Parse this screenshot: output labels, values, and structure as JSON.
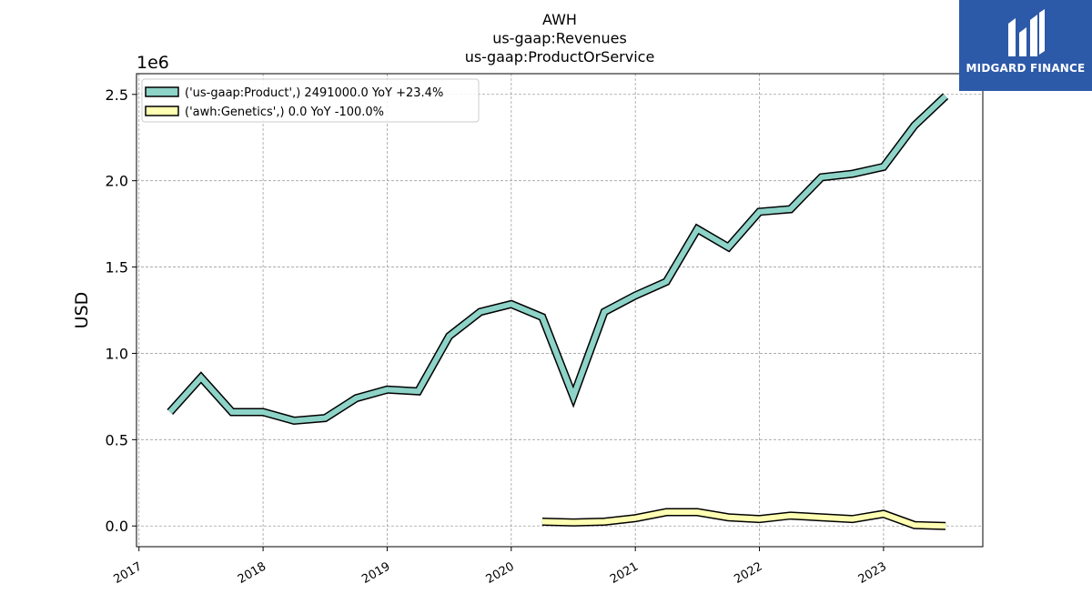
{
  "brand": {
    "name": "MIDGARD FINANCE",
    "bg": "#2d5aa8"
  },
  "chart_data": {
    "type": "line",
    "title_lines": [
      "AWH",
      "us-gaap:Revenues",
      "us-gaap:ProductOrService"
    ],
    "ylabel": "USD",
    "y_offset_label": "1e6",
    "ylim": [
      -0.12,
      2.62
    ],
    "y_ticks": [
      0.0,
      0.5,
      1.0,
      1.5,
      2.0,
      2.5
    ],
    "y_tick_labels": [
      "0.0",
      "0.5",
      "1.0",
      "1.5",
      "2.0",
      "2.5"
    ],
    "x_tick_labels": [
      "2017",
      "2018",
      "2019",
      "2020",
      "2021",
      "2022",
      "2023"
    ],
    "grid": true,
    "legend_position": "upper-left",
    "series": [
      {
        "name": "('us-gaap:Product',) 2491000.0 YoY +23.4%",
        "color": "#8dd3c7",
        "x": [
          2017.25,
          2017.5,
          2017.75,
          2018.0,
          2018.25,
          2018.5,
          2018.75,
          2019.0,
          2019.25,
          2019.5,
          2019.75,
          2020.0,
          2020.25,
          2020.5,
          2020.75,
          2021.0,
          2021.25,
          2021.5,
          2021.75,
          2022.0,
          2022.25,
          2022.5,
          2022.75,
          2023.0,
          2023.25,
          2023.5
        ],
        "values": [
          0.66,
          0.86,
          0.66,
          0.66,
          0.61,
          0.625,
          0.74,
          0.79,
          0.78,
          1.1,
          1.24,
          1.285,
          1.21,
          0.75,
          1.24,
          1.335,
          1.415,
          1.72,
          1.615,
          1.82,
          1.835,
          2.02,
          2.04,
          2.08,
          2.32,
          2.49
        ]
      },
      {
        "name": "('awh:Genetics',) 0.0 YoY -100.0%",
        "color": "#ffffb3",
        "x": [
          2020.25,
          2020.5,
          2020.75,
          2021.0,
          2021.25,
          2021.5,
          2021.75,
          2022.0,
          2022.25,
          2022.5,
          2022.75,
          2023.0,
          2023.25,
          2023.5
        ],
        "values": [
          0.025,
          0.02,
          0.025,
          0.045,
          0.08,
          0.08,
          0.05,
          0.04,
          0.06,
          0.05,
          0.04,
          0.07,
          0.005,
          0.0
        ]
      }
    ]
  }
}
